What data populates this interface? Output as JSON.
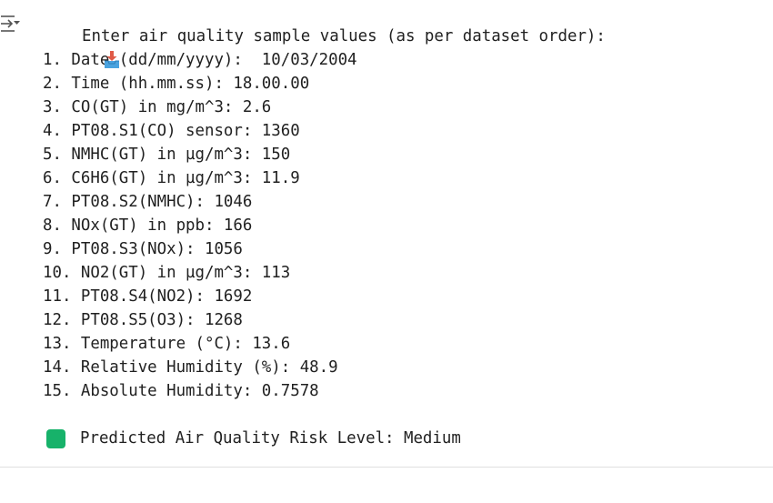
{
  "output_toggle": {
    "icon": "output-collapse-icon"
  },
  "prompt": {
    "icon": "inbox-tray-icon",
    "text": "Enter air quality sample values (as per dataset order):"
  },
  "inputs": [
    "1. Date (dd/mm/yyyy):  10/03/2004",
    "2. Time (hh.mm.ss): 18.00.00",
    "3. CO(GT) in mg/m^3: 2.6",
    "4. PT08.S1(CO) sensor: 1360",
    "5. NMHC(GT) in µg/m^3: 150",
    "6. C6H6(GT) in µg/m^3: 11.9",
    "7. PT08.S2(NMHC): 1046",
    "8. NOx(GT) in ppb: 166",
    "9. PT08.S3(NOx): 1056",
    "10. NO2(GT) in µg/m^3: 113",
    "11. PT08.S4(NO2): 1692",
    "12. PT08.S5(O3): 1268",
    "13. Temperature (°C): 13.6",
    "14. Relative Humidity (%): 48.9",
    "15. Absolute Humidity: 0.7578"
  ],
  "result": {
    "icon": "check-mark-button-icon",
    "text": "Predicted Air Quality Risk Level: Medium",
    "color": "#17b26a"
  }
}
